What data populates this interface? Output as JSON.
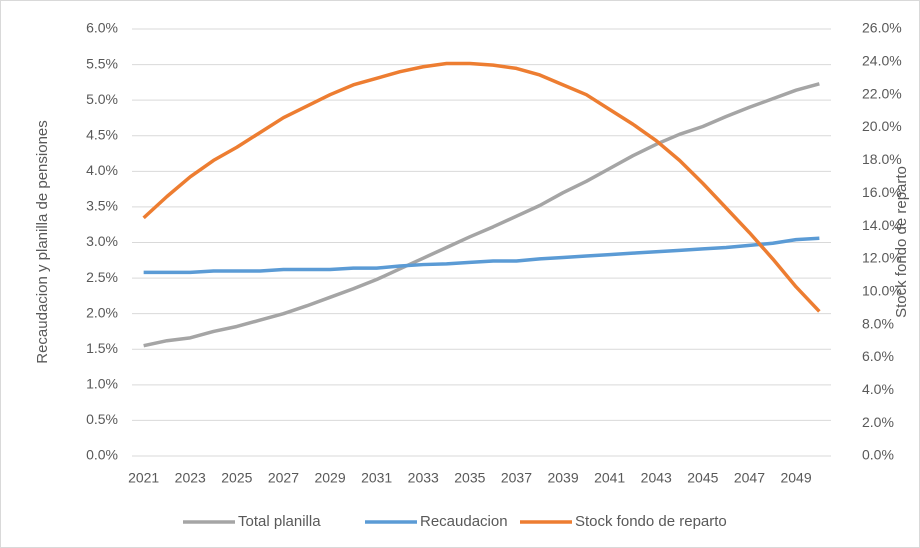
{
  "chart_data": {
    "type": "line",
    "ylabel": "Recaudacion y planilla de pensiones",
    "y2label": "Stock fondo de reparto",
    "x": [
      2021,
      2022,
      2023,
      2024,
      2025,
      2026,
      2027,
      2028,
      2029,
      2030,
      2031,
      2032,
      2033,
      2034,
      2035,
      2036,
      2037,
      2038,
      2039,
      2040,
      2041,
      2042,
      2043,
      2044,
      2045,
      2046,
      2047,
      2048,
      2049,
      2050
    ],
    "xlim": [
      2020.5,
      2050.5
    ],
    "xticks": [
      2021,
      2023,
      2025,
      2027,
      2029,
      2031,
      2033,
      2035,
      2037,
      2039,
      2041,
      2043,
      2045,
      2047,
      2049
    ],
    "ylim": [
      0,
      6
    ],
    "yticks": [
      {
        "value": 0,
        "label": "0.0%"
      },
      {
        "value": 0.5,
        "label": "0.5%"
      },
      {
        "value": 1,
        "label": "1.0%"
      },
      {
        "value": 1.5,
        "label": "1.5%"
      },
      {
        "value": 2,
        "label": "2.0%"
      },
      {
        "value": 2.5,
        "label": "2.5%"
      },
      {
        "value": 3,
        "label": "3.0%"
      },
      {
        "value": 3.5,
        "label": "3.5%"
      },
      {
        "value": 4,
        "label": "4.0%"
      },
      {
        "value": 4.5,
        "label": "4.5%"
      },
      {
        "value": 5,
        "label": "5.0%"
      },
      {
        "value": 5.5,
        "label": "5.5%"
      },
      {
        "value": 6,
        "label": "6.0%"
      }
    ],
    "y2lim": [
      0,
      26
    ],
    "y2ticks": [
      {
        "value": 0,
        "label": "0.0%"
      },
      {
        "value": 2,
        "label": "2.0%"
      },
      {
        "value": 4,
        "label": "4.0%"
      },
      {
        "value": 6,
        "label": "6.0%"
      },
      {
        "value": 8,
        "label": "8.0%"
      },
      {
        "value": 10,
        "label": "10.0%"
      },
      {
        "value": 12,
        "label": "12.0%"
      },
      {
        "value": 14,
        "label": "14.0%"
      },
      {
        "value": 16,
        "label": "16.0%"
      },
      {
        "value": 18,
        "label": "18.0%"
      },
      {
        "value": 20,
        "label": "20.0%"
      },
      {
        "value": 22,
        "label": "22.0%"
      },
      {
        "value": 24,
        "label": "24.0%"
      },
      {
        "value": 26,
        "label": "26.0%"
      }
    ],
    "grid": true,
    "legend": "bottom",
    "series": [
      {
        "name": "Total planilla",
        "color": "#a5a5a5",
        "values": [
          1.55,
          1.62,
          1.66,
          1.75,
          1.82,
          1.91,
          2.0,
          2.11,
          2.23,
          2.35,
          2.48,
          2.63,
          2.78,
          2.93,
          3.08,
          3.22,
          3.37,
          3.52,
          3.7,
          3.86,
          4.04,
          4.22,
          4.38,
          4.52,
          4.63,
          4.77,
          4.9,
          5.02,
          5.14,
          5.23
        ]
      },
      {
        "name": "Recaudacion",
        "color": "#5b9bd5",
        "values": [
          2.58,
          2.58,
          2.58,
          2.6,
          2.6,
          2.6,
          2.62,
          2.62,
          2.62,
          2.64,
          2.64,
          2.67,
          2.69,
          2.7,
          2.72,
          2.74,
          2.74,
          2.77,
          2.79,
          2.81,
          2.83,
          2.85,
          2.87,
          2.89,
          2.91,
          2.93,
          2.96,
          2.99,
          3.04,
          3.06
        ]
      },
      {
        "name": "Stock fondo de reparto",
        "color": "#ed7d31",
        "axis": "y2",
        "values": [
          14.5,
          15.8,
          17.0,
          18.0,
          18.8,
          19.7,
          20.6,
          21.3,
          22.0,
          22.6,
          23.0,
          23.4,
          23.7,
          23.9,
          23.9,
          23.8,
          23.6,
          23.2,
          22.6,
          22.0,
          21.1,
          20.2,
          19.2,
          18.0,
          16.6,
          15.1,
          13.6,
          12.0,
          10.3,
          8.8
        ]
      }
    ]
  }
}
